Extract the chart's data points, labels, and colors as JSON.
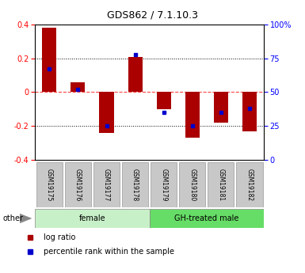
{
  "title": "GDS862 / 7.1.10.3",
  "samples": [
    "GSM19175",
    "GSM19176",
    "GSM19177",
    "GSM19178",
    "GSM19179",
    "GSM19180",
    "GSM19181",
    "GSM19182"
  ],
  "log_ratio": [
    0.38,
    0.06,
    -0.24,
    0.21,
    -0.1,
    -0.27,
    -0.18,
    -0.23
  ],
  "percentile_rank_pct": [
    67,
    52,
    25,
    78,
    35,
    25,
    35,
    38
  ],
  "groups": [
    {
      "label": "female",
      "start": 0,
      "end": 4,
      "color": "#C8F0C8"
    },
    {
      "label": "GH-treated male",
      "start": 4,
      "end": 8,
      "color": "#66DD66"
    }
  ],
  "other_label": "other",
  "ylim": [
    -0.4,
    0.4
  ],
  "y2lim": [
    0,
    100
  ],
  "yticks": [
    -0.4,
    -0.2,
    0.0,
    0.2,
    0.4
  ],
  "y2ticks": [
    0,
    25,
    50,
    75,
    100
  ],
  "bar_width": 0.5,
  "log_ratio_color": "#AA0000",
  "percentile_color": "#0000CC",
  "legend_log_ratio": "log ratio",
  "legend_percentile": "percentile rank within the sample",
  "zero_line_color": "#FF4444",
  "title_fontsize": 9
}
